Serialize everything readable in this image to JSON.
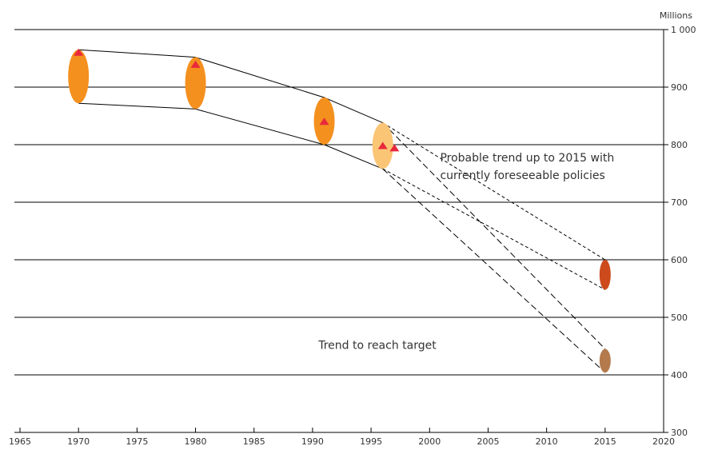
{
  "chart_data": {
    "type": "scatter",
    "title": "",
    "unit_label": "Millions",
    "xlim": [
      1965,
      2020
    ],
    "ylim": [
      300,
      1000
    ],
    "x_ticks": [
      1965,
      1970,
      1975,
      1980,
      1985,
      1990,
      1995,
      2000,
      2005,
      2010,
      2015,
      2020
    ],
    "y_ticks": [
      300,
      400,
      500,
      600,
      700,
      800,
      900,
      1000
    ],
    "y_tick_labels": [
      "300",
      "400",
      "500",
      "600",
      "700",
      "800",
      "900",
      "1 000"
    ],
    "grid": true,
    "estimate_ranges": [
      {
        "x": 1970,
        "low": 872,
        "high": 965,
        "color": "#f4901e"
      },
      {
        "x": 1980,
        "low": 862,
        "high": 952,
        "color": "#f4901e"
      },
      {
        "x": 1991,
        "low": 800,
        "high": 882,
        "color": "#f4901e"
      },
      {
        "x": 1996,
        "low": 758,
        "high": 838,
        "color": "#fbc576"
      }
    ],
    "markers": [
      {
        "x": 1970,
        "y": 960
      },
      {
        "x": 1980,
        "y": 939
      },
      {
        "x": 1991,
        "y": 840
      },
      {
        "x": 1996,
        "y": 798
      },
      {
        "x": 1997,
        "y": 794
      }
    ],
    "marker_color": "#e8283c",
    "historical_envelope": {
      "upper": [
        [
          1970,
          965
        ],
        [
          1980,
          952
        ],
        [
          1991,
          882
        ],
        [
          1996,
          838
        ]
      ],
      "lower": [
        [
          1970,
          872
        ],
        [
          1980,
          862
        ],
        [
          1991,
          800
        ],
        [
          1996,
          758
        ]
      ]
    },
    "projections": [
      {
        "x": 2015,
        "low": 548,
        "high": 600,
        "color": "#cc4a1c",
        "dash": "short",
        "upper": [
          [
            1996,
            838
          ],
          [
            2015,
            600
          ]
        ],
        "lower": [
          [
            1996,
            758
          ],
          [
            2015,
            548
          ]
        ]
      },
      {
        "x": 2015,
        "low": 404,
        "high": 445,
        "color": "#b47a4c",
        "dash": "long",
        "upper": [
          [
            1996,
            838
          ],
          [
            2015,
            445
          ]
        ],
        "lower": [
          [
            1996,
            758
          ],
          [
            2015,
            404
          ]
        ]
      }
    ],
    "annotations": [
      {
        "lines": [
          "Probable trend up to 2015 with",
          "currently foreseeable policies"
        ],
        "x": 2000.9,
        "y": 771
      },
      {
        "lines": [
          "Trend to reach target"
        ],
        "x": 1990.5,
        "y": 445
      }
    ]
  }
}
